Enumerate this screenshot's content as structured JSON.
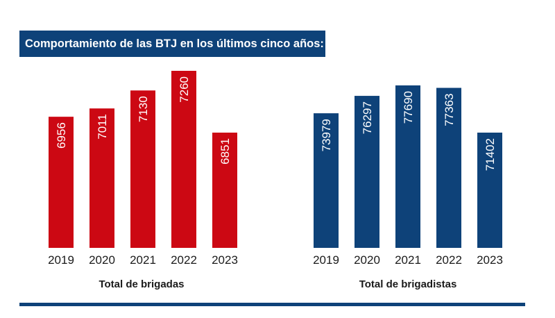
{
  "title": "Comportamiento de las BTJ en los últimos cinco años:",
  "colors": {
    "red": "#cc0813",
    "blue": "#0e4279",
    "text": "#1a1a1a"
  },
  "chart_data": [
    {
      "type": "bar",
      "title": "Total de brigadas",
      "categories": [
        "2019",
        "2020",
        "2021",
        "2022",
        "2023"
      ],
      "values": [
        6956,
        7011,
        7130,
        7260,
        6851
      ],
      "value_labels": [
        "6956",
        "7011",
        "7130",
        "7260",
        "6851"
      ],
      "color": "#cc0813"
    },
    {
      "type": "bar",
      "title": "Total de brigadistas",
      "categories": [
        "2019",
        "2020",
        "2021",
        "2022",
        "2023"
      ],
      "values": [
        73979,
        76297,
        77690,
        77363,
        71402
      ],
      "value_labels": [
        "73979",
        "76297",
        "77690",
        "77363",
        "71402"
      ],
      "color": "#0e4279"
    }
  ]
}
